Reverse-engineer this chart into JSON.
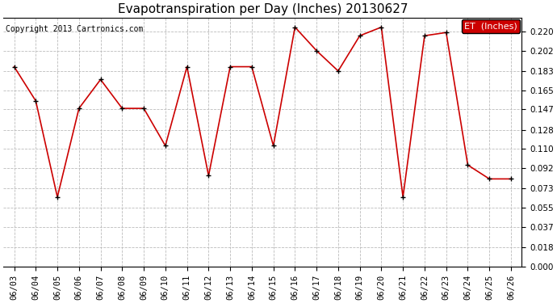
{
  "title": "Evapotranspiration per Day (Inches) 20130627",
  "copyright": "Copyright 2013 Cartronics.com",
  "legend_label": "ET  (Inches)",
  "dates": [
    "06/03",
    "06/04",
    "06/05",
    "06/06",
    "06/07",
    "06/08",
    "06/09",
    "06/10",
    "06/11",
    "06/12",
    "06/13",
    "06/14",
    "06/15",
    "06/16",
    "06/17",
    "06/18",
    "06/19",
    "06/20",
    "06/21",
    "06/22",
    "06/23",
    "06/24",
    "06/25",
    "06/26"
  ],
  "values": [
    0.187,
    0.155,
    0.065,
    0.148,
    0.175,
    0.148,
    0.148,
    0.113,
    0.187,
    0.085,
    0.187,
    0.187,
    0.113,
    0.224,
    0.202,
    0.183,
    0.216,
    0.224,
    0.065,
    0.216,
    0.219,
    0.095,
    0.082,
    0.082
  ],
  "line_color": "#cc0000",
  "marker_color": "#000000",
  "bg_color": "#ffffff",
  "grid_color": "#bbbbbb",
  "ylim": [
    0.0,
    0.233
  ],
  "yticks": [
    0.0,
    0.018,
    0.037,
    0.055,
    0.073,
    0.092,
    0.11,
    0.128,
    0.147,
    0.165,
    0.183,
    0.202,
    0.22
  ],
  "legend_bg": "#cc0000",
  "legend_text_color": "#ffffff",
  "title_fontsize": 11,
  "tick_fontsize": 7.5,
  "copyright_fontsize": 7
}
